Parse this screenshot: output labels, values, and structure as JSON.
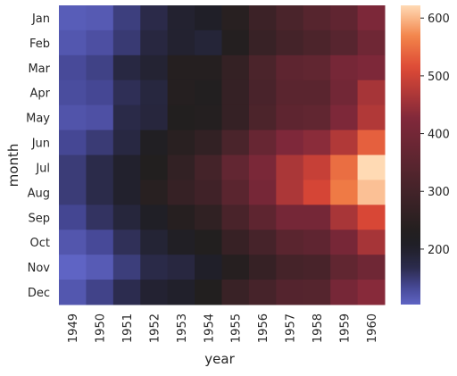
{
  "chart_data": {
    "type": "heatmap",
    "title": "",
    "xlabel": "year",
    "ylabel": "month",
    "x_categories": [
      "1949",
      "1950",
      "1951",
      "1952",
      "1953",
      "1954",
      "1955",
      "1956",
      "1957",
      "1958",
      "1959",
      "1960"
    ],
    "y_categories": [
      "Jan",
      "Feb",
      "Mar",
      "Apr",
      "May",
      "Jun",
      "Jul",
      "Aug",
      "Sep",
      "Oct",
      "Nov",
      "Dec"
    ],
    "values": [
      [
        112,
        115,
        145,
        171,
        196,
        204,
        242,
        284,
        315,
        340,
        360,
        417
      ],
      [
        118,
        126,
        150,
        180,
        196,
        188,
        233,
        277,
        301,
        318,
        342,
        391
      ],
      [
        132,
        141,
        178,
        193,
        236,
        235,
        267,
        317,
        356,
        362,
        406,
        419
      ],
      [
        129,
        135,
        163,
        181,
        235,
        227,
        269,
        313,
        348,
        348,
        396,
        461
      ],
      [
        121,
        125,
        172,
        183,
        229,
        234,
        270,
        318,
        355,
        363,
        420,
        472
      ],
      [
        135,
        149,
        178,
        218,
        243,
        264,
        315,
        374,
        422,
        435,
        472,
        535
      ],
      [
        148,
        170,
        199,
        230,
        264,
        302,
        364,
        413,
        465,
        491,
        548,
        622
      ],
      [
        148,
        170,
        199,
        242,
        272,
        293,
        347,
        405,
        467,
        505,
        559,
        606
      ],
      [
        136,
        158,
        184,
        209,
        237,
        259,
        312,
        355,
        404,
        404,
        463,
        508
      ],
      [
        119,
        133,
        162,
        191,
        211,
        229,
        274,
        306,
        347,
        359,
        407,
        461
      ],
      [
        104,
        114,
        146,
        172,
        180,
        203,
        237,
        271,
        305,
        310,
        362,
        390
      ],
      [
        118,
        140,
        166,
        194,
        201,
        229,
        278,
        306,
        336,
        337,
        405,
        432
      ]
    ],
    "colorbar": {
      "min": 104,
      "max": 622,
      "center": 229,
      "ticks": [
        200,
        300,
        400,
        500,
        600
      ],
      "colormap": "icefire"
    },
    "grid": false
  }
}
